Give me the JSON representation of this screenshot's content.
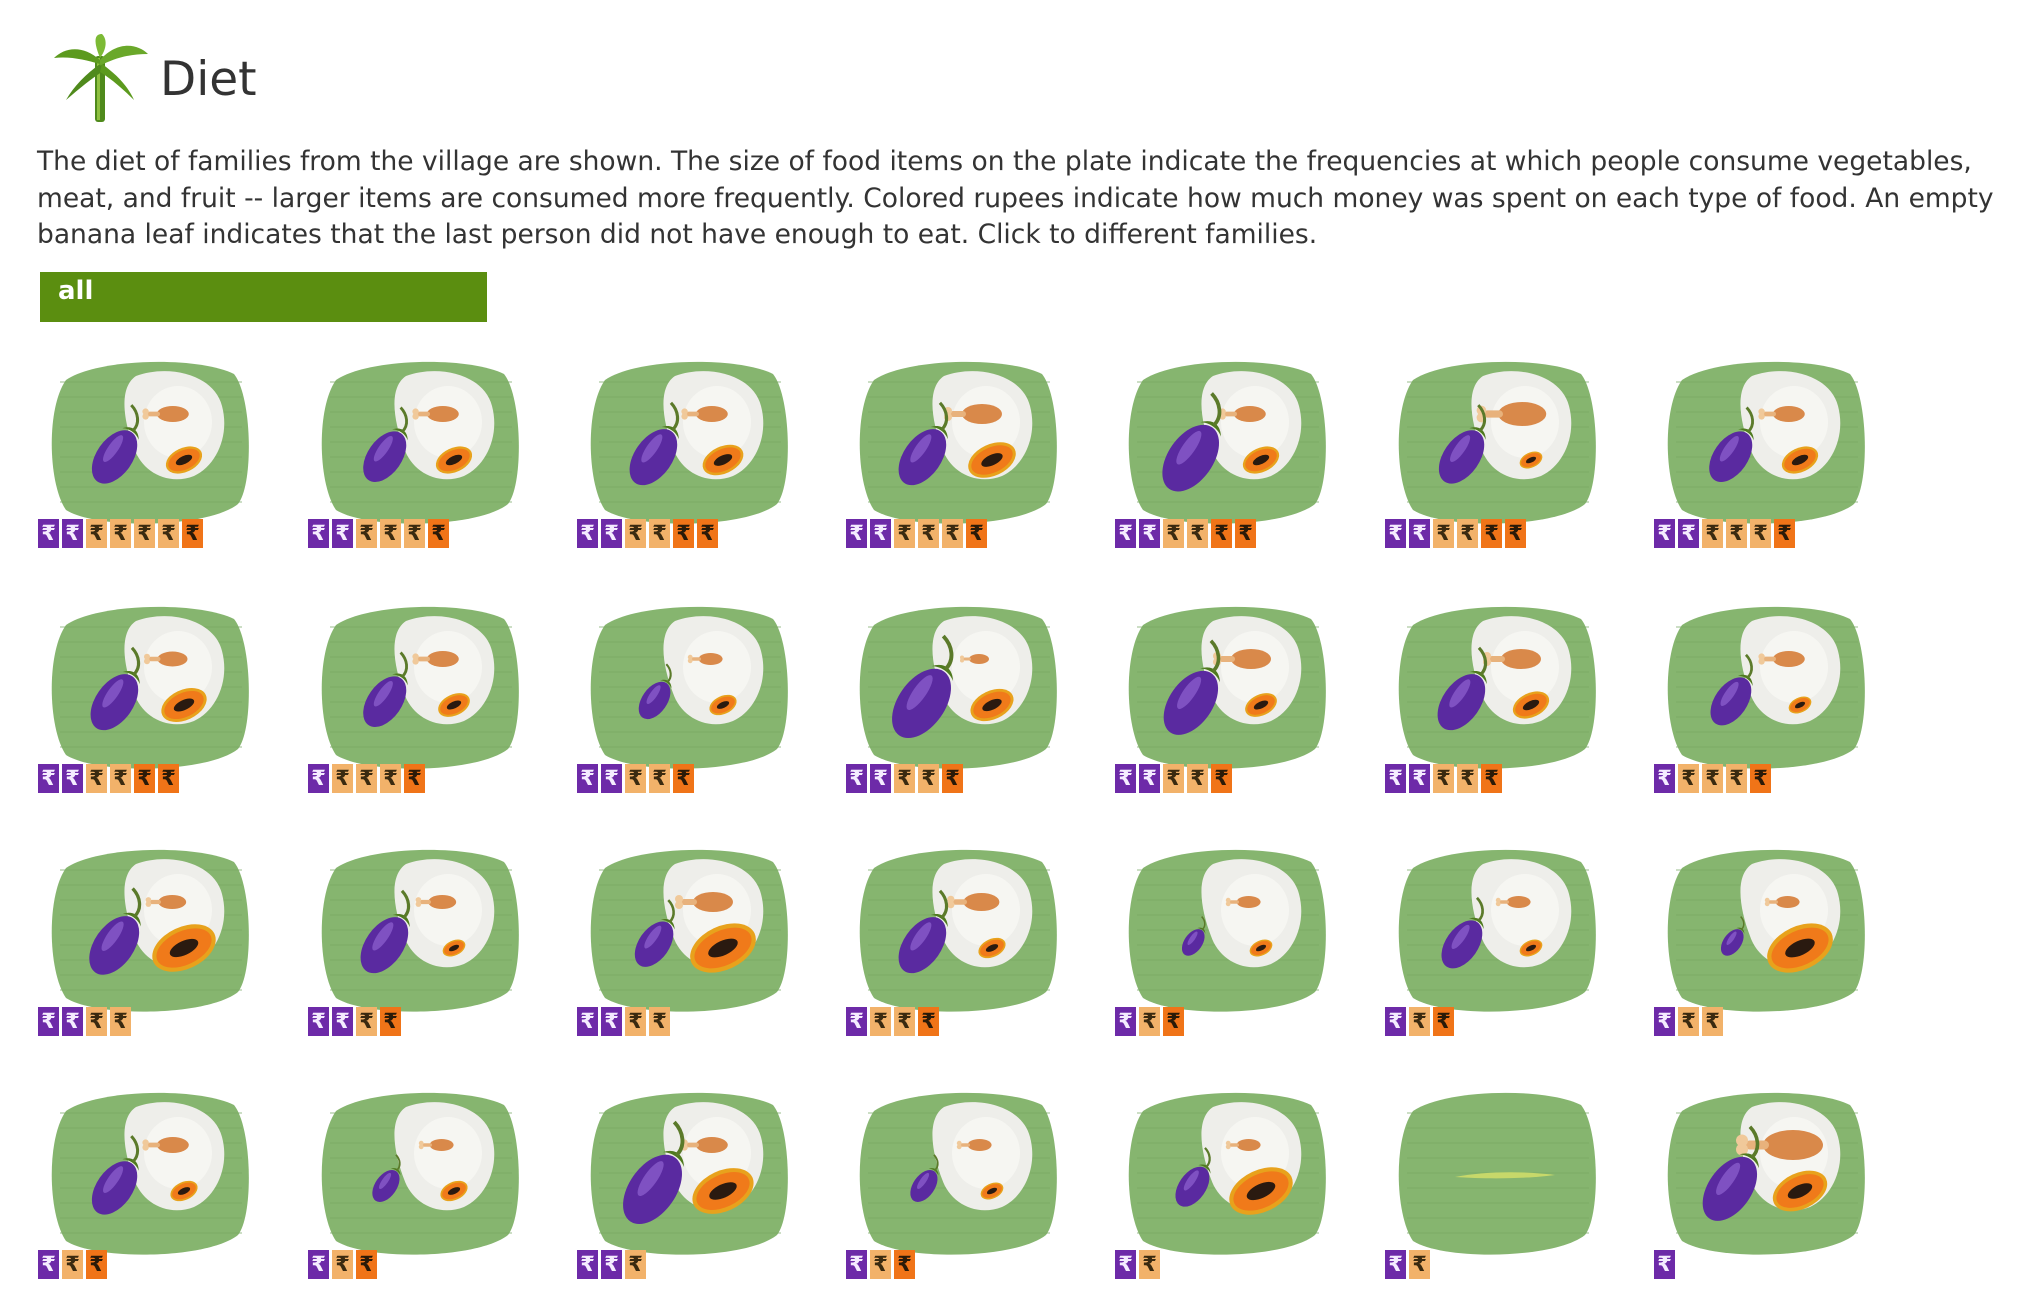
{
  "header": {
    "title": "Diet",
    "logo_icon": "banana-tree-icon"
  },
  "description": "The diet of families from the village are shown. The size of food items on the plate indicate the frequencies at which people consume vegetables, meat, and fruit -- larger items are consumed more frequently. Colored rupees indicate how much money was spent on each type of food. An empty banana leaf indicates that the last person did not have enough to eat. Click to different families.",
  "filter": {
    "label": "all"
  },
  "colors": {
    "purple": "#6d2aa8",
    "light_orange": "#f2b26a",
    "orange": "#f07418",
    "filter_green": "#5b8e10",
    "leaf": "#7fb069"
  },
  "rupee_symbol": "₹",
  "families": [
    {
      "veg": 1.0,
      "meat": 0.8,
      "fruit": 0.8,
      "rupees": [
        "purple",
        "purple",
        "light",
        "light",
        "light",
        "light",
        "orange"
      ]
    },
    {
      "veg": 0.95,
      "meat": 0.8,
      "fruit": 0.8,
      "rupees": [
        "purple",
        "purple",
        "light",
        "light",
        "light",
        "orange"
      ]
    },
    {
      "veg": 1.05,
      "meat": 0.8,
      "fruit": 0.9,
      "rupees": [
        "purple",
        "purple",
        "light",
        "light",
        "orange",
        "orange"
      ]
    },
    {
      "veg": 1.05,
      "meat": 1.0,
      "fruit": 1.05,
      "rupees": [
        "purple",
        "purple",
        "light",
        "light",
        "light",
        "orange"
      ]
    },
    {
      "veg": 1.25,
      "meat": 0.8,
      "fruit": 0.8,
      "rupees": [
        "purple",
        "purple",
        "light",
        "light",
        "orange",
        "orange"
      ]
    },
    {
      "veg": 1.0,
      "meat": 1.2,
      "fruit": 0.5,
      "rupees": [
        "purple",
        "purple",
        "light",
        "light",
        "orange",
        "orange"
      ]
    },
    {
      "veg": 0.95,
      "meat": 0.8,
      "fruit": 0.8,
      "rupees": [
        "purple",
        "purple",
        "light",
        "light",
        "light",
        "orange"
      ]
    },
    {
      "veg": 1.05,
      "meat": 0.75,
      "fruit": 1.0,
      "rupees": [
        "purple",
        "purple",
        "light",
        "light",
        "orange",
        "orange"
      ]
    },
    {
      "veg": 0.95,
      "meat": 0.8,
      "fruit": 0.7,
      "rupees": [
        "purple",
        "light",
        "light",
        "light",
        "orange"
      ]
    },
    {
      "veg": 0.7,
      "meat": 0.6,
      "fruit": 0.6,
      "rupees": [
        "purple",
        "purple",
        "light",
        "light",
        "orange"
      ]
    },
    {
      "veg": 1.3,
      "meat": 0.5,
      "fruit": 0.95,
      "rupees": [
        "purple",
        "purple",
        "light",
        "light",
        "orange"
      ]
    },
    {
      "veg": 1.2,
      "meat": 1.0,
      "fruit": 0.7,
      "rupees": [
        "purple",
        "purple",
        "light",
        "light",
        "orange"
      ]
    },
    {
      "veg": 1.05,
      "meat": 1.0,
      "fruit": 0.8,
      "rupees": [
        "purple",
        "purple",
        "light",
        "light",
        "orange"
      ]
    },
    {
      "veg": 0.9,
      "meat": 0.8,
      "fruit": 0.5,
      "rupees": [
        "purple",
        "light",
        "light",
        "light",
        "orange"
      ]
    },
    {
      "veg": 1.1,
      "meat": 0.7,
      "fruit": 1.4,
      "rupees": [
        "purple",
        "purple",
        "light",
        "light"
      ]
    },
    {
      "veg": 1.05,
      "meat": 0.7,
      "fruit": 0.5,
      "rupees": [
        "purple",
        "purple",
        "light",
        "orange"
      ]
    },
    {
      "veg": 0.85,
      "meat": 1.0,
      "fruit": 1.45,
      "rupees": [
        "purple",
        "purple",
        "light",
        "light"
      ]
    },
    {
      "veg": 1.05,
      "meat": 0.9,
      "fruit": 0.6,
      "rupees": [
        "purple",
        "light",
        "light",
        "orange"
      ]
    },
    {
      "veg": 0.5,
      "meat": 0.6,
      "fruit": 0.5,
      "rupees": [
        "purple",
        "light",
        "orange"
      ]
    },
    {
      "veg": 0.9,
      "meat": 0.6,
      "fruit": 0.5,
      "rupees": [
        "purple",
        "light",
        "orange"
      ]
    },
    {
      "veg": 0.5,
      "meat": 0.6,
      "fruit": 1.45,
      "rupees": [
        "purple",
        "light",
        "light"
      ]
    },
    {
      "veg": 1.0,
      "meat": 0.8,
      "fruit": 0.6,
      "rupees": [
        "purple",
        "light",
        "orange"
      ]
    },
    {
      "veg": 0.6,
      "meat": 0.6,
      "fruit": 0.6,
      "rupees": [
        "purple",
        "light",
        "orange"
      ]
    },
    {
      "veg": 1.3,
      "meat": 0.8,
      "fruit": 1.35,
      "rupees": [
        "purple",
        "purple",
        "light"
      ]
    },
    {
      "veg": 0.6,
      "meat": 0.6,
      "fruit": 0.5,
      "rupees": [
        "purple",
        "light",
        "orange"
      ]
    },
    {
      "veg": 0.75,
      "meat": 0.6,
      "fruit": 1.4,
      "rupees": [
        "purple",
        "light"
      ]
    },
    {
      "veg": 0,
      "meat": 0,
      "fruit": 0,
      "rupees": [
        "purple",
        "light"
      ]
    },
    {
      "veg": 1.2,
      "meat": 1.5,
      "fruit": 1.2,
      "rupees": [
        "purple"
      ]
    }
  ]
}
